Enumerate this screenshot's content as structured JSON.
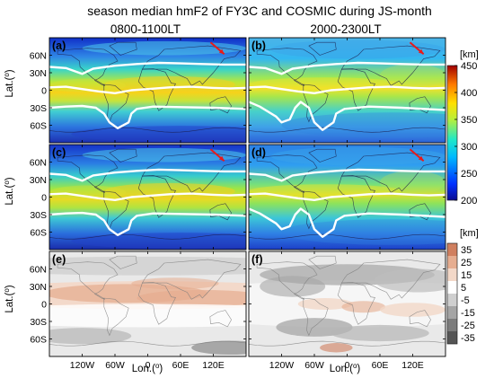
{
  "chart_data": {
    "type": "heatmap",
    "title": "season median hmF2 of FY3C and COSMIC during JS-month",
    "column_titles": [
      "0800-1100LT",
      "2000-2300LT"
    ],
    "ylabel": "Lat.(°)",
    "xlabel": "Lon.(°)",
    "x_ticks": [
      "120W",
      "60W",
      "0",
      "60E",
      "120E"
    ],
    "y_ticks": [
      "60N",
      "30N",
      "0",
      "30S",
      "60S"
    ],
    "xlim": [
      -180,
      180
    ],
    "ylim": [
      -90,
      90
    ],
    "panels": [
      {
        "label": "(a)",
        "row": 0,
        "col": 0,
        "colorbar": "hmF2"
      },
      {
        "label": "(b)",
        "row": 0,
        "col": 1,
        "colorbar": "hmF2"
      },
      {
        "label": "(c)",
        "row": 1,
        "col": 0,
        "colorbar": "hmF2"
      },
      {
        "label": "(d)",
        "row": 1,
        "col": 1,
        "colorbar": "hmF2"
      },
      {
        "label": "(e)",
        "row": 2,
        "col": 0,
        "colorbar": "diff"
      },
      {
        "label": "(f)",
        "row": 2,
        "col": 1,
        "colorbar": "diff"
      }
    ],
    "colorbars": {
      "hmF2": {
        "unit": "[km]",
        "range": [
          200,
          450
        ],
        "ticks": [
          450,
          400,
          350,
          300,
          250,
          200
        ]
      },
      "diff": {
        "unit": "[km]",
        "range": [
          -35,
          35
        ],
        "ticks": [
          35,
          25,
          15,
          5,
          -5,
          -15,
          -25,
          -35
        ],
        "colors": [
          "#555555",
          "#7c7c7c",
          "#a5a5a5",
          "#cfcfcf",
          "#ffffff",
          "#f3d8c8",
          "#e6ad90",
          "#d07f5f"
        ]
      }
    }
  }
}
